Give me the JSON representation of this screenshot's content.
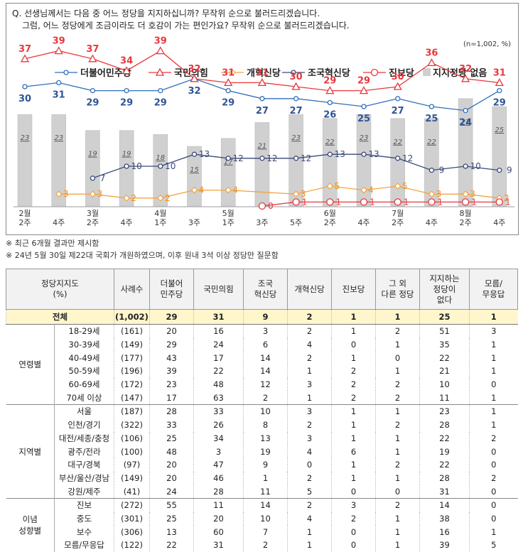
{
  "question": {
    "line1": "Q. 선생님께서는 다음 중 어느 정당을 지지하십니까? 무작위 순으로 불러드리겠습니다.",
    "line2": "그럼, 어느 정당에게 조금이라도 더 호감이 가는 편인가요? 무작위 순으로 불러드리겠습니다.",
    "unit": "(n=1,002,  %)"
  },
  "chart_data": {
    "type": "line",
    "x_labels": [
      [
        "2월",
        "2주"
      ],
      [
        "4주"
      ],
      [
        "3월",
        "2주"
      ],
      [
        "4주"
      ],
      [
        "4월",
        "1주"
      ],
      [
        "3주"
      ],
      [
        "5월",
        "1주"
      ],
      [
        "3주"
      ],
      [
        "5주"
      ],
      [
        "6월",
        "2주"
      ],
      [
        "4주"
      ],
      [
        "7월",
        "2주"
      ],
      [
        "4주"
      ],
      [
        "8월",
        "2주"
      ],
      [
        "4주"
      ]
    ],
    "ylim": [
      0,
      45
    ],
    "series": [
      {
        "name": "더불어민주당",
        "color": "#2f6fba",
        "label_color": "#2f5597",
        "marker": "circle",
        "values": [
          30,
          31,
          29,
          29,
          29,
          32,
          29,
          27,
          27,
          26,
          25,
          27,
          25,
          24,
          29
        ]
      },
      {
        "name": "국민의힘",
        "color": "#e8383d",
        "label_color": "#e8383d",
        "marker": "triangle",
        "values": [
          37,
          39,
          37,
          34,
          39,
          32,
          31,
          31,
          30,
          29,
          29,
          30,
          36,
          32,
          31
        ]
      },
      {
        "name": "개혁신당",
        "color": "#f5a340",
        "label_color": "#f08c1a",
        "marker": "diamond",
        "values": [
          null,
          3,
          3,
          2,
          2,
          4,
          4,
          null,
          3,
          5,
          4,
          5,
          3,
          3,
          2
        ]
      },
      {
        "name": "조국혁신당",
        "color": "#3a4a7a",
        "label_color": "#3a4a7a",
        "marker": "circle",
        "values": [
          null,
          null,
          7,
          10,
          10,
          13,
          12,
          12,
          12,
          13,
          13,
          12,
          9,
          10,
          9
        ]
      },
      {
        "name": "진보당",
        "color": "#e8383d",
        "label_color": "#e8383d",
        "marker": "circle-open",
        "values": [
          null,
          null,
          null,
          null,
          null,
          null,
          null,
          0,
          1,
          1,
          1,
          1,
          1,
          1,
          1
        ]
      }
    ],
    "bars": {
      "name": "지지정당 없음",
      "color": "#d0d0d0",
      "values": [
        23,
        23,
        19,
        19,
        18,
        15,
        17,
        21,
        23,
        22,
        23,
        22,
        22,
        27,
        25
      ]
    }
  },
  "notes": [
    "※ 최근 6개월 결과만 제시함",
    "※ 24년 5월 30일 제22대 국회가 개원하였으며, 이후 원내 3석 이상 정당만 질문함"
  ],
  "table": {
    "headers": [
      "정당지지도\n(%)",
      "사례수",
      "더불어\n민주당",
      "국민의힘",
      "조국\n혁신당",
      "개혁신당",
      "진보당",
      "그 외\n다른 정당",
      "지지하는\n정당이\n없다",
      "모름/\n무응답"
    ],
    "total": [
      "전체",
      "(1,002)",
      "29",
      "31",
      "9",
      "2",
      "1",
      "1",
      "25",
      "1"
    ],
    "groups": [
      {
        "name": "연령별",
        "rows": [
          [
            "18-29세",
            "(161)",
            "20",
            "16",
            "3",
            "2",
            "1",
            "2",
            "51",
            "3"
          ],
          [
            "30-39세",
            "(149)",
            "29",
            "24",
            "6",
            "4",
            "0",
            "1",
            "35",
            "1"
          ],
          [
            "40-49세",
            "(177)",
            "43",
            "17",
            "14",
            "2",
            "1",
            "0",
            "22",
            "1"
          ],
          [
            "50-59세",
            "(196)",
            "39",
            "22",
            "14",
            "1",
            "2",
            "1",
            "21",
            "1"
          ],
          [
            "60-69세",
            "(172)",
            "23",
            "48",
            "12",
            "3",
            "2",
            "2",
            "10",
            "0"
          ],
          [
            "70세 이상",
            "(147)",
            "17",
            "63",
            "2",
            "1",
            "2",
            "2",
            "11",
            "1"
          ]
        ]
      },
      {
        "name": "지역별",
        "rows": [
          [
            "서울",
            "(187)",
            "28",
            "33",
            "10",
            "3",
            "1",
            "1",
            "23",
            "1"
          ],
          [
            "인천/경기",
            "(322)",
            "33",
            "26",
            "8",
            "2",
            "1",
            "2",
            "28",
            "1"
          ],
          [
            "대전/세종/충청",
            "(106)",
            "25",
            "34",
            "13",
            "3",
            "1",
            "1",
            "22",
            "2"
          ],
          [
            "광주/전라",
            "(100)",
            "48",
            "3",
            "19",
            "4",
            "6",
            "1",
            "19",
            "0"
          ],
          [
            "대구/경북",
            "(97)",
            "20",
            "47",
            "9",
            "0",
            "1",
            "2",
            "22",
            "0"
          ],
          [
            "부산/울산/경남",
            "(149)",
            "20",
            "46",
            "1",
            "2",
            "1",
            "1",
            "28",
            "2"
          ],
          [
            "강원/제주",
            "(41)",
            "24",
            "28",
            "11",
            "5",
            "0",
            "0",
            "31",
            "0"
          ]
        ]
      },
      {
        "name": "이념\n성향별",
        "rows": [
          [
            "진보",
            "(272)",
            "55",
            "11",
            "14",
            "2",
            "3",
            "2",
            "14",
            "0"
          ],
          [
            "중도",
            "(301)",
            "25",
            "20",
            "10",
            "4",
            "2",
            "1",
            "38",
            "0"
          ],
          [
            "보수",
            "(306)",
            "13",
            "60",
            "7",
            "1",
            "0",
            "1",
            "16",
            "1"
          ],
          [
            "모름/무응답",
            "(122)",
            "22",
            "31",
            "2",
            "1",
            "0",
            "1",
            "39",
            "5"
          ]
        ]
      }
    ]
  }
}
